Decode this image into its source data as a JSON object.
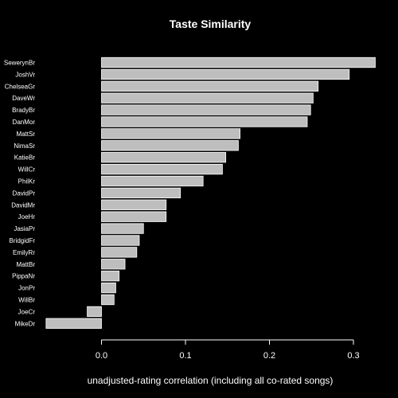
{
  "chart_data": {
    "type": "bar",
    "orientation": "horizontal",
    "title": "Taste Similarity",
    "xlabel": "unadjusted-rating correlation (including all co-rated songs)",
    "ylabel": "",
    "categories": [
      "SewerynBr",
      "JoshVr",
      "ChelseaGr",
      "DaveWr",
      "BradyBr",
      "DanMor",
      "MattSr",
      "NimaSr",
      "KatieBr",
      "WillCr",
      "PhilKr",
      "DavidPr",
      "DavidMr",
      "JoeHr",
      "JasiaPr",
      "BridgidFr",
      "EmilyRr",
      "MattBr",
      "PippaNr",
      "JonPr",
      "WillBr",
      "JoeCr",
      "MikeDr"
    ],
    "values": [
      0.326,
      0.295,
      0.258,
      0.252,
      0.249,
      0.245,
      0.165,
      0.163,
      0.148,
      0.144,
      0.121,
      0.094,
      0.077,
      0.077,
      0.05,
      0.045,
      0.042,
      0.028,
      0.021,
      0.017,
      0.015,
      -0.017,
      -0.066
    ],
    "xticks": [
      "0.0",
      "0.1",
      "0.2",
      "0.3"
    ],
    "xtick_values": [
      0.0,
      0.1,
      0.2,
      0.3
    ],
    "xlim": [
      -0.07,
      0.33
    ],
    "grid": false,
    "legend": "none",
    "colors": {
      "background": "#000000",
      "bar": "#bebebe",
      "bar_border": "#ffffff",
      "text": "#ffffff"
    }
  }
}
